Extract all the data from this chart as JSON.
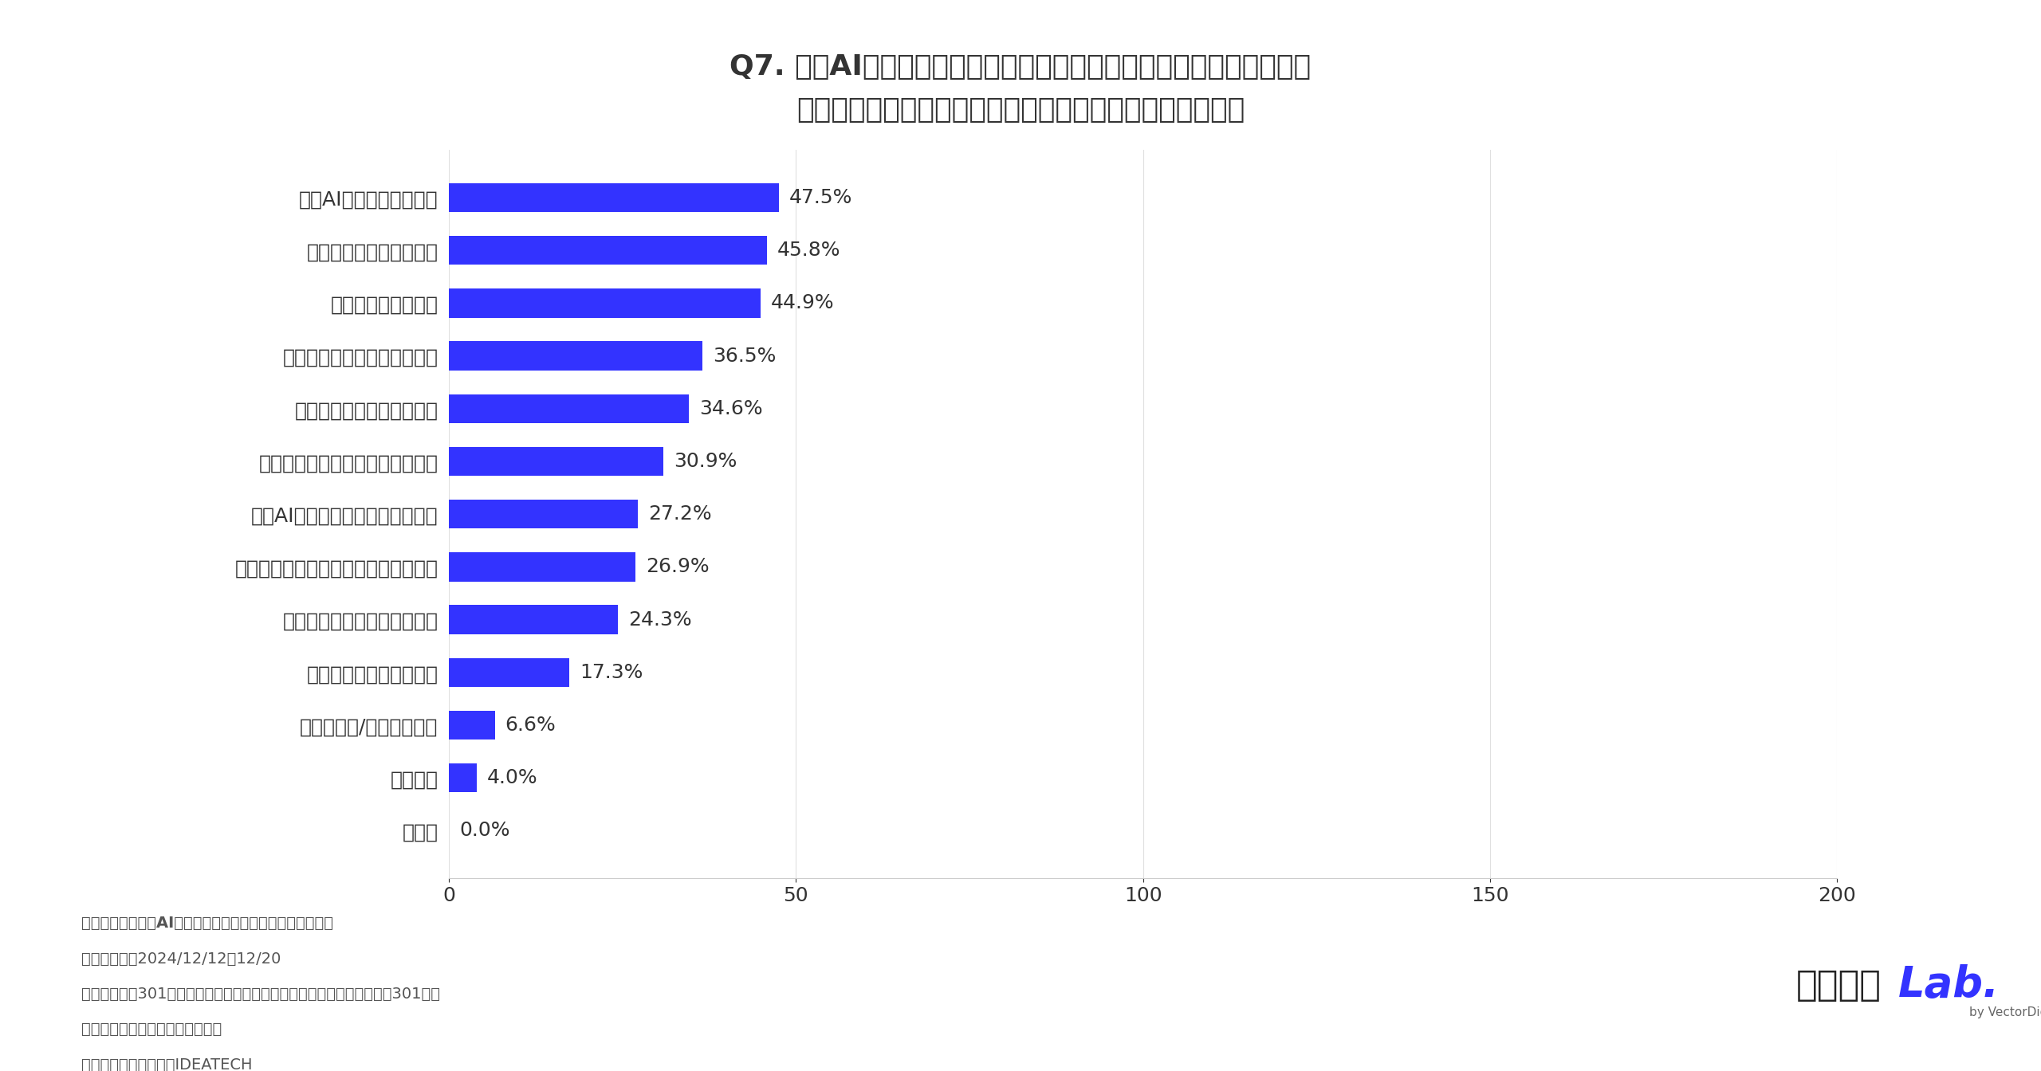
{
  "title_line1": "Q7. 生成AI時代において、若手・中堅マーケターの育成にあたって、",
  "title_line2": "今後重視したい点を具体的に教えてください（複数回答）",
  "categories": [
    "生成AIリテラシーの向上",
    "データ分析スキルの強化",
    "戦略的思考力の育成",
    "クリエイティブ発想力の開発",
    "変化に対する適応力の育成",
    "ビジネス全体を俯瞰する力の養成",
    "生成AIと人間の協業スキルの育成",
    "プロジェクトマネジメント経験の付与",
    "リーダーシップスキルの向上",
    "部門横断的な視点の醸成",
    "わからない/答えられない",
    "特にない",
    "その他"
  ],
  "values": [
    47.5,
    45.8,
    44.9,
    36.5,
    34.6,
    30.9,
    27.2,
    26.9,
    24.3,
    17.3,
    6.6,
    4.0,
    0.0
  ],
  "bar_color": "#3333ff",
  "bar_color_highlight": "#5555ff",
  "value_color": "#333333",
  "background_color": "#ffffff",
  "title_color": "#333333",
  "label_color": "#333333",
  "xlim": [
    0,
    200
  ],
  "xticks": [
    0,
    50,
    100,
    150,
    200
  ],
  "footnote_lines": [
    "【調査内容：生成AIに対するマーケターの意識調査結果】",
    "・調査期間：2024/12/12〜12/20",
    "・調査対象：301名（事業会社に勤めているマーケティング部の管理職301名）",
    "・調査方法：インターネット調査",
    "・実施機関：株式会社IDEATECH"
  ],
  "logo_text1": "キーマケ",
  "logo_text2": "Lab.",
  "logo_sub": "by VectorDigital"
}
